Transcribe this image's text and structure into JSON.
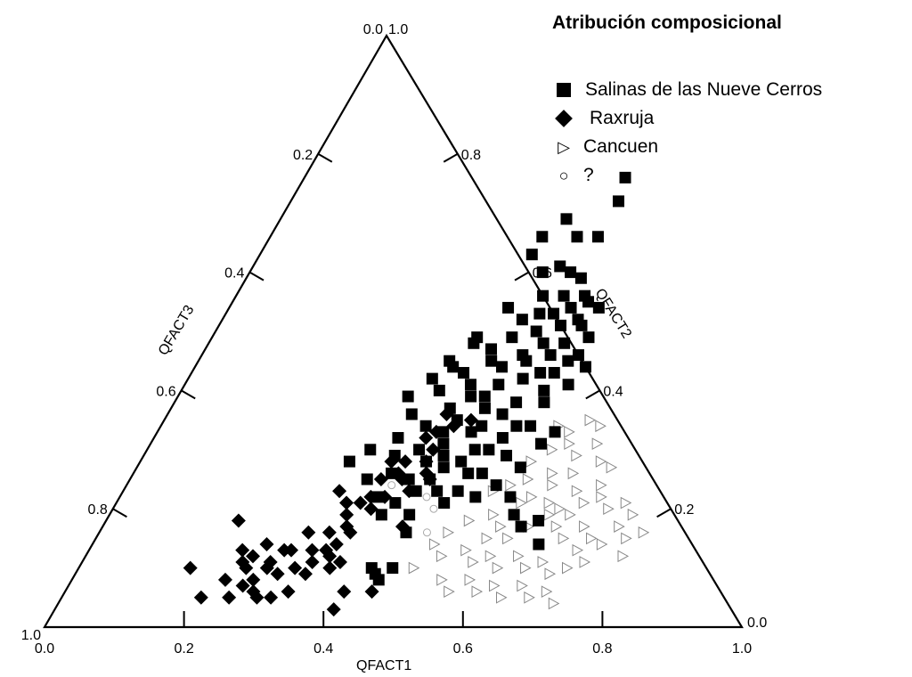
{
  "chart_data": {
    "type": "scatter",
    "subtype": "ternary",
    "title": "Atribución composicional",
    "axes": {
      "bottom": {
        "label": "QFACT1",
        "ticks": [
          "0.0",
          "0.2",
          "0.4",
          "0.6",
          "0.8",
          "1.0"
        ]
      },
      "left": {
        "label": "QFACT3",
        "ticks": [
          "0.0",
          "0.2",
          "0.4",
          "0.6",
          "0.8",
          "1.0"
        ]
      },
      "right": {
        "label": "QFACT2",
        "ticks": [
          "1.0",
          "0.8",
          "0.6",
          "0.4",
          "0.2",
          "0.0"
        ]
      }
    },
    "legend": [
      {
        "label": "Salinas de las Nueve Cerros",
        "marker": "filled-square"
      },
      {
        "label": "Raxruja",
        "marker": "filled-diamond"
      },
      {
        "label": "Cancuen",
        "marker": "open-triangle-right"
      },
      {
        "label": "?",
        "marker": "open-circle"
      }
    ],
    "series": [
      {
        "name": "Salinas de las Nueve Cerros",
        "marker": "filled-square",
        "color": "#000000",
        "points": [
          [
            0.46,
            0.76
          ],
          [
            0.41,
            0.69
          ],
          [
            0.47,
            0.72
          ],
          [
            0.44,
            0.66
          ],
          [
            0.39,
            0.66
          ],
          [
            0.39,
            0.63
          ],
          [
            0.47,
            0.66
          ],
          [
            0.42,
            0.6
          ],
          [
            0.44,
            0.61
          ],
          [
            0.46,
            0.6
          ],
          [
            0.48,
            0.59
          ],
          [
            0.47,
            0.56
          ],
          [
            0.44,
            0.56
          ],
          [
            0.47,
            0.53
          ],
          [
            0.4,
            0.54
          ],
          [
            0.45,
            0.53
          ],
          [
            0.49,
            0.54
          ],
          [
            0.51,
            0.55
          ],
          [
            0.53,
            0.54
          ],
          [
            0.51,
            0.52
          ],
          [
            0.52,
            0.51
          ],
          [
            0.54,
            0.49
          ],
          [
            0.54,
            0.46
          ],
          [
            0.5,
            0.46
          ],
          [
            0.48,
            0.48
          ],
          [
            0.46,
            0.5
          ],
          [
            0.43,
            0.49
          ],
          [
            0.41,
            0.47
          ],
          [
            0.38,
            0.49
          ],
          [
            0.36,
            0.45
          ],
          [
            0.39,
            0.43
          ],
          [
            0.42,
            0.45
          ],
          [
            0.44,
            0.44
          ],
          [
            0.46,
            0.46
          ],
          [
            0.48,
            0.42
          ],
          [
            0.45,
            0.41
          ],
          [
            0.42,
            0.39
          ],
          [
            0.4,
            0.37
          ],
          [
            0.37,
            0.4
          ],
          [
            0.33,
            0.39
          ],
          [
            0.35,
            0.36
          ],
          [
            0.38,
            0.34
          ],
          [
            0.42,
            0.35
          ],
          [
            0.45,
            0.37
          ],
          [
            0.49,
            0.38
          ],
          [
            0.52,
            0.4
          ],
          [
            0.5,
            0.43
          ],
          [
            0.48,
            0.36
          ],
          [
            0.45,
            0.33
          ],
          [
            0.42,
            0.31
          ],
          [
            0.41,
            0.28
          ],
          [
            0.44,
            0.27
          ],
          [
            0.47,
            0.3
          ],
          [
            0.5,
            0.32
          ],
          [
            0.53,
            0.34
          ],
          [
            0.52,
            0.29
          ],
          [
            0.48,
            0.26
          ],
          [
            0.45,
            0.23
          ],
          [
            0.42,
            0.23
          ],
          [
            0.4,
            0.25
          ],
          [
            0.39,
            0.3
          ],
          [
            0.43,
            0.29
          ],
          [
            0.46,
            0.28
          ],
          [
            0.5,
            0.26
          ],
          [
            0.53,
            0.24
          ],
          [
            0.56,
            0.22
          ],
          [
            0.43,
            0.19
          ],
          [
            0.4,
            0.21
          ],
          [
            0.37,
            0.22
          ],
          [
            0.56,
            0.31
          ],
          [
            0.58,
            0.19
          ],
          [
            0.6,
            0.17
          ],
          [
            0.47,
            0.21
          ],
          [
            0.51,
            0.34
          ],
          [
            0.37,
            0.26
          ],
          [
            0.35,
            0.32
          ],
          [
            0.53,
            0.45
          ],
          [
            0.51,
            0.48
          ],
          [
            0.49,
            0.51
          ],
          [
            0.44,
            0.39
          ],
          [
            0.47,
            0.45
          ],
          [
            0.41,
            0.41
          ],
          [
            0.55,
            0.41
          ],
          [
            0.56,
            0.44
          ],
          [
            0.37,
            0.44
          ],
          [
            0.5,
            0.56
          ],
          [
            0.43,
            0.52
          ],
          [
            0.53,
            0.38
          ],
          [
            0.46,
            0.34
          ],
          [
            0.49,
            0.3
          ],
          [
            0.43,
            0.25
          ],
          [
            0.44,
            0.16
          ],
          [
            0.62,
            0.18
          ],
          [
            0.64,
            0.14
          ],
          [
            0.51,
            0.22
          ],
          [
            0.34,
            0.25
          ],
          [
            0.3,
            0.28
          ],
          [
            0.48,
            0.23
          ],
          [
            0.39,
            0.19
          ],
          [
            0.32,
            0.3
          ],
          [
            0.38,
            0.48
          ],
          [
            0.35,
            0.42
          ],
          [
            0.36,
            0.29
          ],
          [
            0.55,
            0.27
          ],
          [
            0.57,
            0.33
          ],
          [
            0.52,
            0.43
          ],
          [
            0.41,
            0.33
          ],
          [
            0.44,
            0.08
          ],
          [
            0.43,
            0.09
          ],
          [
            0.45,
            0.1
          ],
          [
            0.42,
            0.1
          ]
        ]
      },
      {
        "name": "Raxruja",
        "marker": "filled-diamond",
        "color": "#000000",
        "points": [
          [
            0.19,
            0.18
          ],
          [
            0.16,
            0.1
          ],
          [
            0.2,
            0.05
          ],
          [
            0.25,
            0.14
          ],
          [
            0.22,
            0.13
          ],
          [
            0.24,
            0.12
          ],
          [
            0.22,
            0.08
          ],
          [
            0.24,
            0.1
          ],
          [
            0.26,
            0.08
          ],
          [
            0.28,
            0.13
          ],
          [
            0.29,
            0.13
          ],
          [
            0.32,
            0.13
          ],
          [
            0.27,
            0.06
          ],
          [
            0.28,
            0.05
          ],
          [
            0.3,
            0.05
          ],
          [
            0.32,
            0.06
          ],
          [
            0.31,
            0.1
          ],
          [
            0.33,
            0.11
          ],
          [
            0.34,
            0.13
          ],
          [
            0.33,
            0.16
          ],
          [
            0.35,
            0.14
          ],
          [
            0.36,
            0.16
          ],
          [
            0.34,
            0.19
          ],
          [
            0.35,
            0.21
          ],
          [
            0.33,
            0.21
          ],
          [
            0.31,
            0.23
          ],
          [
            0.36,
            0.22
          ],
          [
            0.38,
            0.22
          ],
          [
            0.39,
            0.25
          ],
          [
            0.41,
            0.23
          ],
          [
            0.42,
            0.26
          ],
          [
            0.43,
            0.25
          ],
          [
            0.41,
            0.28
          ],
          [
            0.41,
            0.3
          ],
          [
            0.4,
            0.33
          ],
          [
            0.42,
            0.34
          ],
          [
            0.44,
            0.35
          ],
          [
            0.4,
            0.36
          ],
          [
            0.38,
            0.28
          ],
          [
            0.36,
            0.28
          ],
          [
            0.36,
            0.1
          ],
          [
            0.37,
            0.11
          ],
          [
            0.4,
            0.06
          ],
          [
            0.4,
            0.03
          ],
          [
            0.44,
            0.06
          ],
          [
            0.35,
            0.12
          ],
          [
            0.33,
            0.09
          ],
          [
            0.27,
            0.11
          ],
          [
            0.24,
            0.05
          ],
          [
            0.25,
            0.07
          ],
          [
            0.29,
            0.09
          ],
          [
            0.38,
            0.26
          ],
          [
            0.37,
            0.2
          ],
          [
            0.39,
            0.32
          ],
          [
            0.43,
            0.17
          ],
          [
            0.3,
            0.16
          ],
          [
            0.35,
            0.17
          ],
          [
            0.36,
            0.25
          ],
          [
            0.27,
            0.1
          ],
          [
            0.23,
            0.11
          ]
        ]
      },
      {
        "name": "Cancuen",
        "marker": "open-triangle-right",
        "color": "#888888",
        "points": [
          [
            0.53,
            0.23
          ],
          [
            0.55,
            0.24
          ],
          [
            0.57,
            0.25
          ],
          [
            0.59,
            0.22
          ],
          [
            0.61,
            0.24
          ],
          [
            0.63,
            0.26
          ],
          [
            0.65,
            0.23
          ],
          [
            0.67,
            0.21
          ],
          [
            0.69,
            0.22
          ],
          [
            0.71,
            0.2
          ],
          [
            0.73,
            0.21
          ],
          [
            0.75,
            0.19
          ],
          [
            0.55,
            0.19
          ],
          [
            0.57,
            0.17
          ],
          [
            0.59,
            0.15
          ],
          [
            0.61,
            0.17
          ],
          [
            0.63,
            0.19
          ],
          [
            0.65,
            0.17
          ],
          [
            0.67,
            0.15
          ],
          [
            0.69,
            0.17
          ],
          [
            0.71,
            0.15
          ],
          [
            0.73,
            0.14
          ],
          [
            0.54,
            0.13
          ],
          [
            0.56,
            0.11
          ],
          [
            0.58,
            0.12
          ],
          [
            0.6,
            0.1
          ],
          [
            0.62,
            0.12
          ],
          [
            0.64,
            0.1
          ],
          [
            0.66,
            0.11
          ],
          [
            0.68,
            0.09
          ],
          [
            0.7,
            0.1
          ],
          [
            0.53,
            0.08
          ],
          [
            0.55,
            0.06
          ],
          [
            0.57,
            0.08
          ],
          [
            0.59,
            0.06
          ],
          [
            0.61,
            0.07
          ],
          [
            0.63,
            0.05
          ],
          [
            0.65,
            0.07
          ],
          [
            0.67,
            0.05
          ],
          [
            0.69,
            0.06
          ],
          [
            0.71,
            0.04
          ],
          [
            0.56,
            0.28
          ],
          [
            0.58,
            0.3
          ],
          [
            0.6,
            0.31
          ],
          [
            0.62,
            0.29
          ],
          [
            0.64,
            0.31
          ],
          [
            0.66,
            0.28
          ],
          [
            0.68,
            0.27
          ],
          [
            0.57,
            0.34
          ],
          [
            0.59,
            0.33
          ],
          [
            0.61,
            0.35
          ],
          [
            0.63,
            0.34
          ],
          [
            0.52,
            0.18
          ],
          [
            0.5,
            0.16
          ],
          [
            0.51,
            0.12
          ],
          [
            0.49,
            0.14
          ],
          [
            0.48,
            0.1
          ],
          [
            0.76,
            0.15
          ],
          [
            0.78,
            0.16
          ],
          [
            0.74,
            0.17
          ],
          [
            0.77,
            0.12
          ],
          [
            0.72,
            0.11
          ],
          [
            0.62,
            0.21
          ],
          [
            0.64,
            0.2
          ],
          [
            0.66,
            0.19
          ],
          [
            0.6,
            0.26
          ],
          [
            0.68,
            0.24
          ],
          [
            0.7,
            0.13
          ],
          [
            0.58,
            0.21
          ],
          [
            0.56,
            0.15
          ]
        ]
      },
      {
        "name": "?",
        "marker": "open-circle",
        "color": "#aaaaaa",
        "points": [
          [
            0.38,
            0.24
          ],
          [
            0.4,
            0.25
          ],
          [
            0.44,
            0.22
          ],
          [
            0.46,
            0.2
          ],
          [
            0.47,
            0.16
          ]
        ]
      }
    ],
    "colors": {
      "ink": "#000000",
      "cancuen": "#888888",
      "unknown": "#aaaaaa"
    },
    "grid": false,
    "legend_position": "top-right"
  }
}
